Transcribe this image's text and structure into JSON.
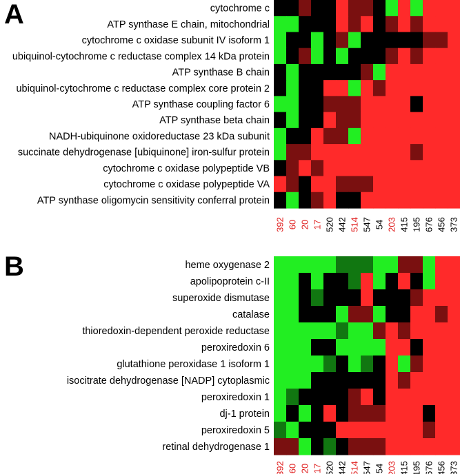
{
  "colors": {
    "red": "#ff2a2a",
    "dark_red": "#7a1010",
    "black": "#000000",
    "green": "#22ee22",
    "dark_green": "#117711",
    "gray": "#b4b4b4",
    "label_black": "#000000",
    "label_red": "#e02020"
  },
  "chart_data": [
    {
      "type": "heatmap",
      "panel": "A",
      "rows": [
        "cytochrome c",
        "ATP synthase E chain, mitochondrial",
        "cytochrome c oxidase subunit IV isoform 1",
        "ubiquinol-cytochrome c reductase complex 14 kDa protein",
        "ATP synthase B chain",
        "ubiquinol-cytochrome c reductase complex core protein 2",
        "ATP synthase coupling factor 6",
        "ATP synthase beta chain",
        "NADH-ubiquinone oxidoreductase 23 kDa subunit",
        "succinate dehydrogenase [ubiquinone] iron-sulfur protein",
        "cytochrome c oxidase polypeptide VB",
        "cytochrome c oxidase polypeptide VA",
        "ATP synthase oligomycin sensitivity conferral protein"
      ],
      "columns": [
        "392",
        "60",
        "20",
        "17",
        "520",
        "442",
        "514",
        "547",
        "54",
        "203",
        "415",
        "195",
        "676",
        "456",
        "373"
      ],
      "column_colors": [
        "red",
        "red",
        "red",
        "red",
        "black",
        "black",
        "red",
        "black",
        "black",
        "red",
        "black",
        "black",
        "black",
        "black",
        "black"
      ],
      "cells": [
        [
          "K",
          "K",
          "D",
          "K",
          "K",
          "R",
          "D",
          "D",
          "K",
          "G",
          "R",
          "G",
          "R",
          "R",
          "R"
        ],
        [
          "G",
          "G",
          "K",
          "K",
          "K",
          "R",
          "D",
          "R",
          "K",
          "D",
          "R",
          "D",
          "R",
          "R",
          "R"
        ],
        [
          "G",
          "K",
          "K",
          "G",
          "K",
          "D",
          "G",
          "K",
          "K",
          "K",
          "K",
          "K",
          "D",
          "D",
          "R"
        ],
        [
          "G",
          "K",
          "D",
          "G",
          "K",
          "G",
          "K",
          "K",
          "K",
          "D",
          "R",
          "D",
          "R",
          "R",
          "R"
        ],
        [
          "K",
          "G",
          "K",
          "K",
          "K",
          "K",
          "K",
          "D",
          "G",
          "R",
          "R",
          "R",
          "R",
          "R",
          "R"
        ],
        [
          "K",
          "G",
          "K",
          "K",
          "R",
          "R",
          "G",
          "R",
          "D",
          "R",
          "R",
          "R",
          "R",
          "R",
          "R"
        ],
        [
          "G",
          "G",
          "K",
          "K",
          "D",
          "D",
          "D",
          "R",
          "R",
          "R",
          "R",
          "K",
          "R",
          "R",
          "R"
        ],
        [
          "K",
          "G",
          "K",
          "K",
          "R",
          "D",
          "D",
          "R",
          "R",
          "R",
          "R",
          "R",
          "R",
          "R",
          "R"
        ],
        [
          "G",
          "K",
          "K",
          "R",
          "D",
          "D",
          "G",
          "R",
          "R",
          "R",
          "R",
          "R",
          "R",
          "R",
          "R"
        ],
        [
          "G",
          "D",
          "D",
          "R",
          "R",
          "R",
          "R",
          "R",
          "R",
          "R",
          "R",
          "D",
          "R",
          "R",
          "R"
        ],
        [
          "K",
          "D",
          "R",
          "D",
          "R",
          "R",
          "R",
          "R",
          "R",
          "R",
          "R",
          "R",
          "R",
          "R",
          "R"
        ],
        [
          "R",
          "D",
          "K",
          "R",
          "R",
          "D",
          "D",
          "D",
          "R",
          "R",
          "R",
          "R",
          "R",
          "R",
          "R"
        ],
        [
          "K",
          "G",
          "K",
          "D",
          "R",
          "K",
          "K",
          "R",
          "R",
          "R",
          "R",
          "R",
          "R",
          "R",
          "R"
        ]
      ]
    },
    {
      "type": "heatmap",
      "panel": "B",
      "rows": [
        "heme oxygenase 2",
        "apolipoprotein c-II",
        "superoxide dismutase",
        "catalase",
        "thioredoxin-dependent peroxide reductase",
        "peroxiredoxin 6",
        "glutathione peroxidase 1 isoform 1",
        "isocitrate dehydrogenase [NADP] cytoplasmic",
        "peroxiredoxin 1",
        "dj-1 protein",
        "peroxiredoxin 5",
        "retinal dehydrogenase 1"
      ],
      "columns": [
        "392",
        "60",
        "20",
        "17",
        "520",
        "442",
        "514",
        "547",
        "54",
        "203",
        "415",
        "195",
        "676",
        "456",
        "373"
      ],
      "column_colors": [
        "red",
        "red",
        "red",
        "red",
        "black",
        "black",
        "red",
        "black",
        "black",
        "red",
        "black",
        "black",
        "black",
        "black",
        "black"
      ],
      "cells": [
        [
          "G",
          "G",
          "G",
          "G",
          "G",
          "E",
          "E",
          "E",
          "G",
          "G",
          "D",
          "D",
          "G",
          "R",
          "R"
        ],
        [
          "G",
          "G",
          "K",
          "G",
          "K",
          "K",
          "E",
          "R",
          "G",
          "K",
          "R",
          "K",
          "G",
          "R",
          "R"
        ],
        [
          "G",
          "G",
          "K",
          "E",
          "K",
          "K",
          "K",
          "R",
          "K",
          "K",
          "K",
          "D",
          "R",
          "R",
          "R"
        ],
        [
          "G",
          "G",
          "K",
          "K",
          "K",
          "G",
          "D",
          "D",
          "G",
          "K",
          "K",
          "R",
          "R",
          "D",
          "R"
        ],
        [
          "G",
          "G",
          "G",
          "G",
          "G",
          "E",
          "G",
          "G",
          "D",
          "R",
          "D",
          "R",
          "R",
          "R",
          "R"
        ],
        [
          "G",
          "G",
          "G",
          "K",
          "K",
          "G",
          "G",
          "G",
          "G",
          "R",
          "R",
          "K",
          "R",
          "R",
          "R"
        ],
        [
          "G",
          "G",
          "G",
          "G",
          "E",
          "K",
          "G",
          "E",
          "K",
          "R",
          "G",
          "D",
          "R",
          "R",
          "R"
        ],
        [
          "G",
          "G",
          "G",
          "K",
          "K",
          "K",
          "K",
          "K",
          "K",
          "R",
          "D",
          "R",
          "R",
          "R",
          "R"
        ],
        [
          "G",
          "E",
          "K",
          "K",
          "K",
          "K",
          "D",
          "R",
          "K",
          "R",
          "R",
          "R",
          "R",
          "R",
          "R"
        ],
        [
          "G",
          "K",
          "G",
          "K",
          "R",
          "K",
          "D",
          "D",
          "D",
          "R",
          "R",
          "R",
          "K",
          "R",
          "R"
        ],
        [
          "E",
          "G",
          "K",
          "K",
          "K",
          "R",
          "R",
          "R",
          "R",
          "R",
          "R",
          "R",
          "D",
          "R",
          "R"
        ],
        [
          "D",
          "D",
          "G",
          "K",
          "E",
          "K",
          "D",
          "D",
          "D",
          "R",
          "R",
          "R",
          "R",
          "R",
          "R"
        ]
      ]
    }
  ],
  "panels": [
    {
      "letter": "A"
    },
    {
      "letter": "B"
    }
  ]
}
